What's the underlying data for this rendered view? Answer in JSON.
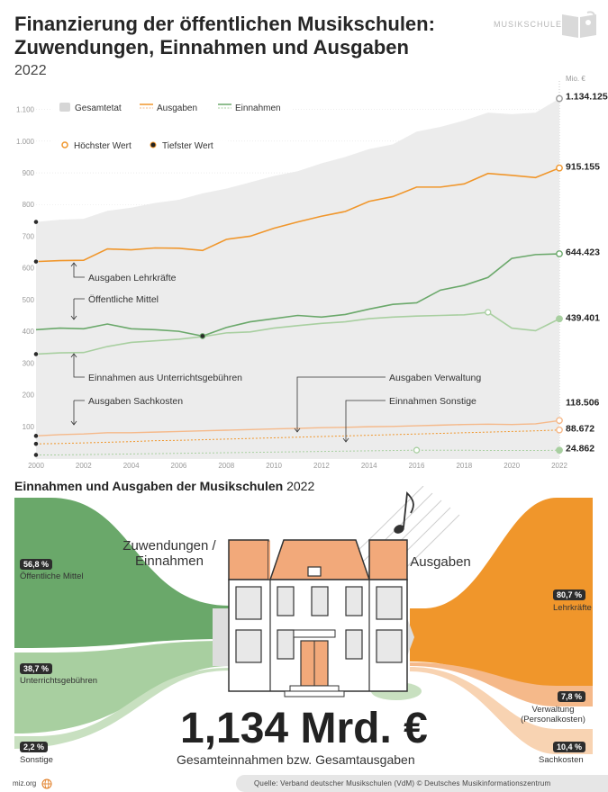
{
  "header": {
    "title": "Finanzierung der öffentlichen Musikschulen: Zuwendungen, Einnahmen und Ausgaben",
    "year": "2022",
    "brand": "MUSIKSCHULEN"
  },
  "chart_data": {
    "type": "line",
    "unit_label": "Mio. €",
    "x": [
      2000,
      2001,
      2002,
      2003,
      2004,
      2005,
      2006,
      2007,
      2008,
      2009,
      2010,
      2011,
      2012,
      2013,
      2014,
      2015,
      2016,
      2017,
      2018,
      2019,
      2020,
      2021,
      2022
    ],
    "xticks": [
      "2000",
      "2002",
      "2004",
      "2006",
      "2008",
      "2010",
      "2012",
      "2014",
      "2016",
      "2018",
      "2020",
      "2022"
    ],
    "yticks": [
      "100",
      "200",
      "300",
      "400",
      "500",
      "600",
      "700",
      "800",
      "900",
      "1.000",
      "1.100"
    ],
    "ylim": [
      0,
      1150
    ],
    "legend": {
      "gesamtetat": "Gesamtetat",
      "ausgaben": "Ausgaben",
      "einnahmen": "Einnahmen",
      "hoechster": "Höchster Wert",
      "tiefster": "Tiefster Wert"
    },
    "series": [
      {
        "name": "Gesamtetat",
        "values": [
          745,
          752,
          755,
          780,
          790,
          805,
          815,
          835,
          850,
          870,
          890,
          905,
          930,
          950,
          975,
          990,
          1030,
          1045,
          1065,
          1090,
          1085,
          1090,
          1134.125
        ]
      },
      {
        "name": "Ausgaben Lehrkräfte",
        "values": [
          620,
          623,
          624,
          660,
          657,
          663,
          662,
          655,
          690,
          700,
          725,
          745,
          763,
          778,
          810,
          825,
          855,
          855,
          865,
          898,
          892,
          885,
          915.155
        ]
      },
      {
        "name": "Öffentliche Mittel",
        "values": [
          405,
          410,
          408,
          423,
          408,
          405,
          400,
          385,
          412,
          430,
          440,
          450,
          445,
          453,
          470,
          485,
          490,
          530,
          545,
          570,
          630,
          642,
          644.423
        ]
      },
      {
        "name": "Einnahmen aus Unterrichtsgebühren",
        "values": [
          328,
          332,
          333,
          352,
          365,
          370,
          375,
          383,
          395,
          398,
          410,
          418,
          425,
          430,
          440,
          445,
          448,
          450,
          452,
          460,
          410,
          402,
          439.401
        ]
      },
      {
        "name": "Ausgaben Sachkosten",
        "values": [
          70,
          74,
          76,
          80,
          80,
          82,
          84,
          86,
          88,
          90,
          92,
          94,
          96,
          97,
          99,
          100,
          102,
          104,
          106,
          107,
          106,
          108,
          118.506
        ]
      },
      {
        "name": "Ausgaben Verwaltung",
        "values": [
          45,
          46,
          48,
          50,
          52,
          55,
          56,
          58,
          60,
          62,
          64,
          66,
          68,
          70,
          72,
          74,
          76,
          78,
          80,
          82,
          84,
          86,
          88.672
        ]
      },
      {
        "name": "Einnahmen Sonstige",
        "values": [
          10,
          10,
          11,
          12,
          13,
          14,
          15,
          16,
          17,
          18,
          19,
          20,
          21,
          22,
          23,
          24,
          25,
          25,
          25,
          24,
          24,
          24,
          24.862
        ]
      }
    ],
    "end_labels": [
      "1.134.125",
      "915.155",
      "644.423",
      "439.401",
      "118.506",
      "88.672",
      "24.862"
    ],
    "annotations": {
      "lehrkraefte": "Ausgaben Lehrkräfte",
      "oeffentlich": "Öffentliche Mittel",
      "gebuehren": "Einnahmen aus Unterrichtsgebühren",
      "sachkosten": "Ausgaben Sachkosten",
      "verwaltung": "Ausgaben Verwaltung",
      "sonstige": "Einnahmen Sonstige"
    }
  },
  "flow": {
    "title_bold": "Einnahmen und Ausgaben der Musikschulen",
    "title_year": "2022",
    "left_heading": "Zuwendungen / Einnahmen",
    "right_heading": "Ausgaben",
    "income": [
      {
        "pct": "56,8 %",
        "label": "Öffentliche Mittel"
      },
      {
        "pct": "38,7 %",
        "label": "Unterrichtsgebühren"
      },
      {
        "pct": "2,2 %",
        "label": "Sonstige"
      }
    ],
    "expenses": [
      {
        "pct": "80,7 %",
        "label": "Lehrkräfte"
      },
      {
        "pct": "7,8 %",
        "label": "Verwaltung (Personalkosten)"
      },
      {
        "pct": "10,4 %",
        "label": "Sachkosten"
      }
    ],
    "total": "1,134 Mrd. €",
    "total_sub": "Gesamteinnahmen bzw. Gesamtausgaben"
  },
  "footer": {
    "site": "miz.org",
    "source": "Quelle: Verband deutscher Musikschulen (VdM) © Deutsches Musikinformationszentrum"
  },
  "colors": {
    "orange": "#f0962b",
    "orange_light": "#f5b98a",
    "green": "#6aa86a",
    "green_light": "#a8cfa0",
    "green_pale": "#c8e0c0",
    "grey_area": "#ececec",
    "house_roof": "#f2a97a"
  }
}
